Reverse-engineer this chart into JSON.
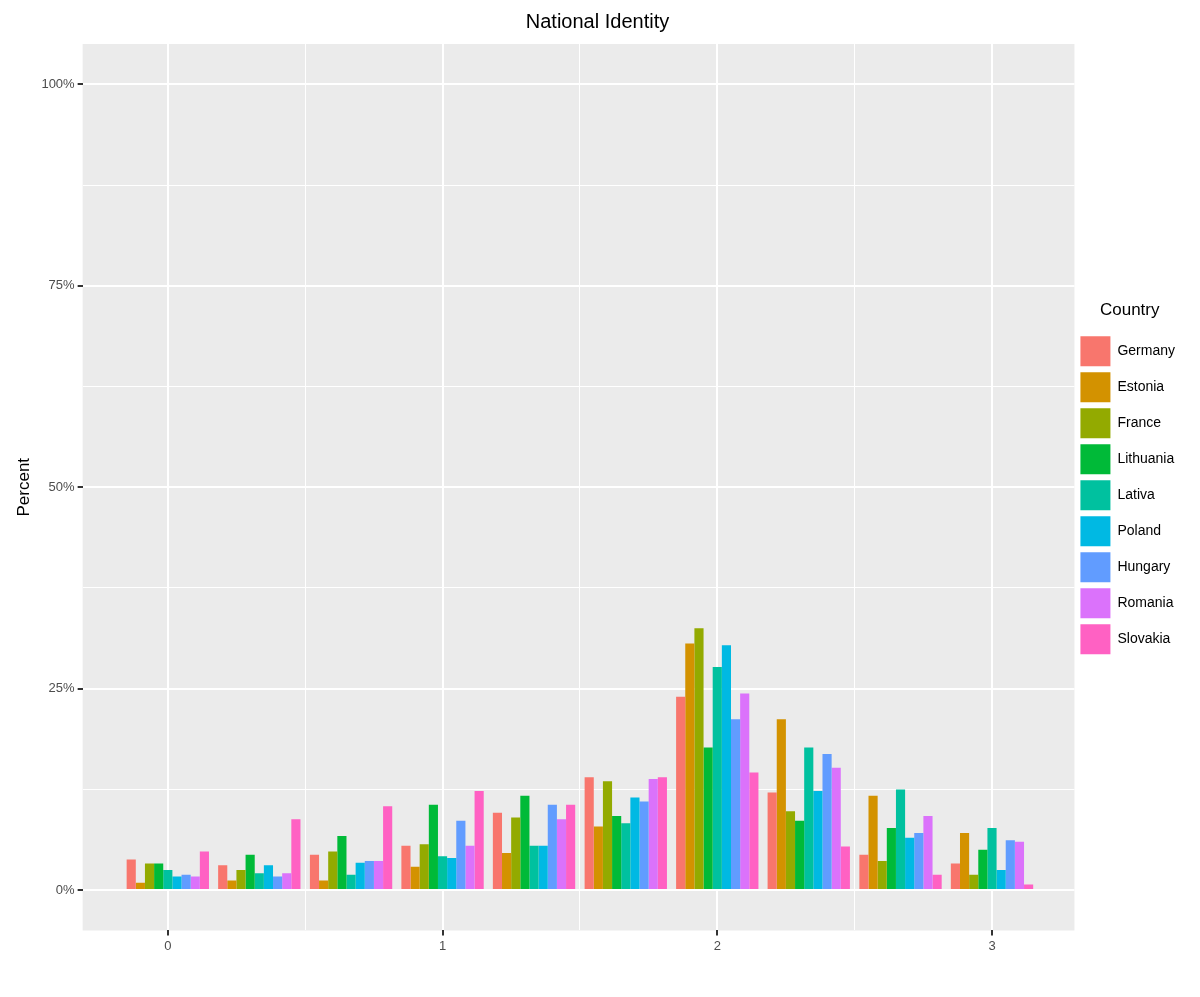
{
  "chart_data": {
    "type": "bar",
    "title": "National Identity",
    "ylabel": "Percent",
    "legend_title": "Country",
    "legend": "right",
    "grid": true,
    "x": [
      0,
      0.333,
      0.667,
      1,
      1.333,
      1.667,
      2,
      2.333,
      2.667,
      3
    ],
    "xlim": [
      -0.31,
      3.3
    ],
    "xticks": [
      0,
      {
        "value": 0.5,
        "label": null
      },
      1,
      {
        "value": 1.5,
        "label": null
      },
      2,
      {
        "value": 2.5,
        "label": null
      },
      3
    ],
    "ylim": [
      -5,
      105
    ],
    "yticks": [
      {
        "value": 0,
        "label": "0%"
      },
      {
        "value": 12.5,
        "label": null
      },
      {
        "value": 25,
        "label": "25%"
      },
      {
        "value": 37.5,
        "label": null
      },
      {
        "value": 50,
        "label": "50%"
      },
      {
        "value": 62.5,
        "label": null
      },
      {
        "value": 75,
        "label": "75%"
      },
      {
        "value": 87.5,
        "label": null
      },
      {
        "value": 100,
        "label": "100%"
      }
    ],
    "series": [
      {
        "name": "Germany",
        "color": "#f8766d",
        "values": [
          3.8,
          3.1,
          4.4,
          5.5,
          9.6,
          14.0,
          24.0,
          12.1,
          4.4,
          3.3
        ]
      },
      {
        "name": "Estonia",
        "color": "#d39200",
        "values": [
          0.9,
          1.2,
          1.2,
          2.9,
          4.6,
          7.9,
          30.6,
          21.2,
          11.7,
          7.1
        ]
      },
      {
        "name": "France",
        "color": "#93aa00",
        "values": [
          3.3,
          2.5,
          4.8,
          5.7,
          9.0,
          13.5,
          32.5,
          9.8,
          3.6,
          1.9
        ]
      },
      {
        "name": "Lithuania",
        "color": "#00ba38",
        "values": [
          3.3,
          4.4,
          6.7,
          10.6,
          11.7,
          9.2,
          17.7,
          8.6,
          7.7,
          5.0
        ]
      },
      {
        "name": "Lativa",
        "color": "#00c19f",
        "values": [
          2.5,
          2.1,
          1.9,
          4.2,
          5.5,
          8.3,
          27.7,
          17.7,
          12.5,
          7.7
        ]
      },
      {
        "name": "Poland",
        "color": "#00b9e3",
        "values": [
          1.7,
          3.1,
          3.4,
          4.0,
          5.5,
          11.5,
          30.4,
          12.3,
          6.5,
          2.5
        ]
      },
      {
        "name": "Hungary",
        "color": "#619cff",
        "values": [
          1.9,
          1.7,
          3.6,
          8.6,
          10.6,
          11.0,
          21.2,
          16.9,
          7.1,
          6.2
        ]
      },
      {
        "name": "Romania",
        "color": "#db72fb",
        "values": [
          1.7,
          2.1,
          3.6,
          5.5,
          8.8,
          13.8,
          24.4,
          15.2,
          9.2,
          6.0
        ]
      },
      {
        "name": "Slovakia",
        "color": "#ff61c3",
        "values": [
          4.8,
          8.8,
          10.4,
          12.3,
          10.6,
          14.0,
          14.6,
          5.4,
          1.9,
          0.7
        ]
      }
    ]
  }
}
